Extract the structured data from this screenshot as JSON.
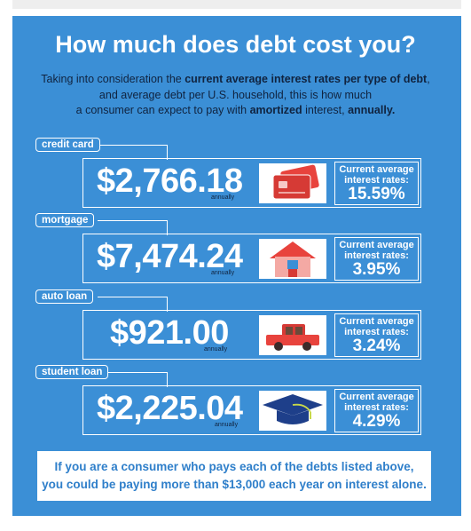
{
  "title": "How much does debt cost you?",
  "subtitle": {
    "line1_pre": "Taking into consideration the ",
    "line1_bold": "current average interest rates per type of debt",
    "line1_post": ",",
    "line2": "and average debt per U.S. household, this is how much",
    "line3_pre": "a consumer can expect to pay with ",
    "line3_bold1": "amortized",
    "line3_mid": " interest, ",
    "line3_bold2": "annually."
  },
  "debts": [
    {
      "type": "credit card",
      "amount": "$2,766.18",
      "period": "annually",
      "rate_label": "Current average interest rates:",
      "rate": "15.59%",
      "icon": "credit-card-icon"
    },
    {
      "type": "mortgage",
      "amount": "$7,474.24",
      "period": "annually",
      "rate_label": "Current average interest rates:",
      "rate": "3.95%",
      "icon": "house-icon"
    },
    {
      "type": "auto loan",
      "amount": "$921.00",
      "period": "annually",
      "rate_label": "Current average interest rates:",
      "rate": "3.24%",
      "icon": "car-icon"
    },
    {
      "type": "student loan",
      "amount": "$2,225.04",
      "period": "annually",
      "rate_label": "Current average interest rates:",
      "rate": "4.29%",
      "icon": "graduation-cap-icon"
    }
  ],
  "footer": {
    "line1": "If you are a consumer who pays each of the debts listed above,",
    "line2": "you could be paying more than $13,000 each year on interest alone."
  },
  "colors": {
    "panel": "#3b8fd6",
    "dark_text": "#10233f",
    "icon_red": "#e8433d",
    "footer_text": "#2f7fca"
  }
}
